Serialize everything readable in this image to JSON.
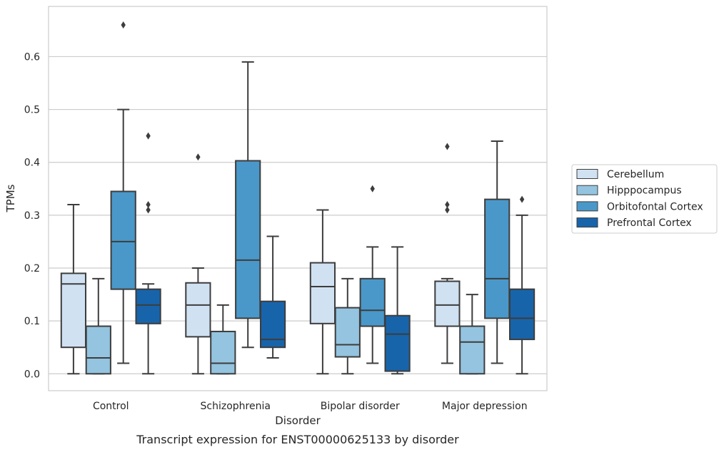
{
  "caption": "Transcript expression for ENST00000625133 by disorder",
  "chart_data": {
    "type": "box",
    "xlabel": "Disorder",
    "ylabel": "TPMs",
    "ylim": [
      -0.032,
      0.695
    ],
    "yticks": [
      0.0,
      0.1,
      0.2,
      0.3,
      0.4,
      0.5,
      0.6
    ],
    "ytick_labels": [
      "0.0",
      "0.1",
      "0.2",
      "0.3",
      "0.4",
      "0.5",
      "0.6"
    ],
    "grid": "horizontal",
    "legend_position": "right",
    "categories": [
      "Control",
      "Schizophrenia",
      "Bipolar disorder",
      "Major depression"
    ],
    "series": [
      {
        "name": "Cerebellum",
        "color": "#d0e1f2",
        "boxes": [
          {
            "whislo": 0.0,
            "q1": 0.05,
            "med": 0.17,
            "q3": 0.19,
            "whishi": 0.32,
            "fliers": []
          },
          {
            "whislo": 0.0,
            "q1": 0.07,
            "med": 0.13,
            "q3": 0.172,
            "whishi": 0.2,
            "fliers": [
              0.41
            ]
          },
          {
            "whislo": 0.0,
            "q1": 0.095,
            "med": 0.165,
            "q3": 0.21,
            "whishi": 0.31,
            "fliers": []
          },
          {
            "whislo": 0.02,
            "q1": 0.09,
            "med": 0.13,
            "q3": 0.175,
            "whishi": 0.18,
            "fliers": [
              0.31,
              0.32,
              0.43
            ]
          }
        ]
      },
      {
        "name": "Hipppocampus",
        "color": "#94c4df",
        "boxes": [
          {
            "whislo": 0.0,
            "q1": 0.0,
            "med": 0.03,
            "q3": 0.09,
            "whishi": 0.18,
            "fliers": []
          },
          {
            "whislo": 0.0,
            "q1": 0.0,
            "med": 0.02,
            "q3": 0.08,
            "whishi": 0.13,
            "fliers": []
          },
          {
            "whislo": 0.0,
            "q1": 0.032,
            "med": 0.055,
            "q3": 0.125,
            "whishi": 0.18,
            "fliers": []
          },
          {
            "whislo": 0.0,
            "q1": 0.0,
            "med": 0.06,
            "q3": 0.09,
            "whishi": 0.15,
            "fliers": []
          }
        ]
      },
      {
        "name": "Orbitofontal Cortex",
        "color": "#4a98c9",
        "boxes": [
          {
            "whislo": 0.02,
            "q1": 0.16,
            "med": 0.25,
            "q3": 0.345,
            "whishi": 0.5,
            "fliers": [
              0.66
            ]
          },
          {
            "whislo": 0.05,
            "q1": 0.105,
            "med": 0.215,
            "q3": 0.403,
            "whishi": 0.59,
            "fliers": []
          },
          {
            "whislo": 0.02,
            "q1": 0.09,
            "med": 0.12,
            "q3": 0.18,
            "whishi": 0.24,
            "fliers": [
              0.35
            ]
          },
          {
            "whislo": 0.02,
            "q1": 0.105,
            "med": 0.18,
            "q3": 0.33,
            "whishi": 0.44,
            "fliers": []
          }
        ]
      },
      {
        "name": "Prefrontal Cortex",
        "color": "#1764ab",
        "boxes": [
          {
            "whislo": 0.0,
            "q1": 0.095,
            "med": 0.13,
            "q3": 0.16,
            "whishi": 0.17,
            "fliers": [
              0.31,
              0.32,
              0.45
            ]
          },
          {
            "whislo": 0.03,
            "q1": 0.05,
            "med": 0.065,
            "q3": 0.137,
            "whishi": 0.26,
            "fliers": []
          },
          {
            "whislo": 0.0,
            "q1": 0.005,
            "med": 0.075,
            "q3": 0.11,
            "whishi": 0.24,
            "fliers": []
          },
          {
            "whislo": 0.0,
            "q1": 0.065,
            "med": 0.105,
            "q3": 0.16,
            "whishi": 0.3,
            "fliers": [
              0.33
            ]
          }
        ]
      }
    ]
  }
}
